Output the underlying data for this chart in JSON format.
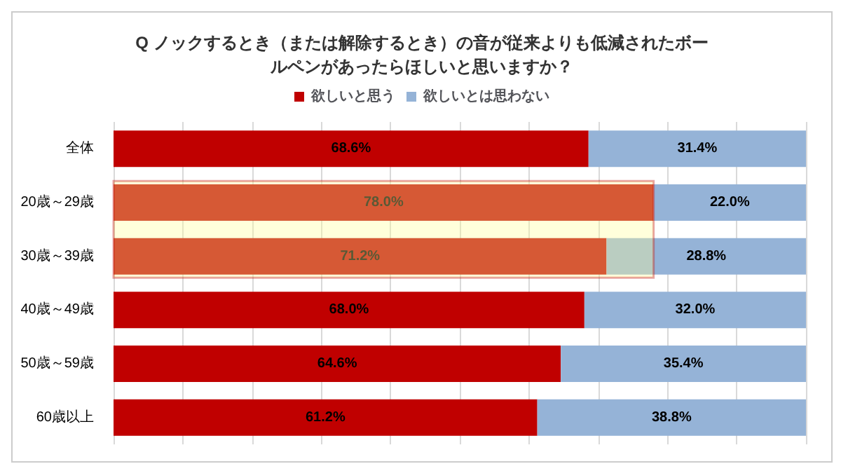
{
  "chart_data": {
    "type": "bar",
    "orientation": "horizontal",
    "stacked": true,
    "title": "Q ノックするとき（または解除するとき）の音が従来よりも低減されたボールペンがあったらほしいと思いますか？",
    "categories": [
      "全体",
      "20歳～29歳",
      "30歳～39歳",
      "40歳～49歳",
      "50歳～59歳",
      "60歳以上"
    ],
    "series": [
      {
        "name": "欲しいと思う",
        "color": "#c00000",
        "values": [
          68.6,
          78.0,
          71.2,
          68.0,
          64.6,
          61.2
        ],
        "value_labels": [
          "68.6%",
          "78.0%",
          "71.2%",
          "68.0%",
          "64.6%",
          "61.2%"
        ]
      },
      {
        "name": "欲しいとは思わない",
        "color": "#95b3d7",
        "values": [
          31.4,
          22.0,
          28.8,
          32.0,
          35.4,
          38.8
        ],
        "value_labels": [
          "31.4%",
          "22.0%",
          "28.8%",
          "32.0%",
          "35.4%",
          "38.8%"
        ]
      }
    ],
    "xlim": [
      0,
      100
    ],
    "xticks": [
      {
        "value": 0,
        "label": null
      },
      {
        "value": 10,
        "label": null
      },
      {
        "value": 20,
        "label": null
      },
      {
        "value": 30,
        "label": null
      },
      {
        "value": 40,
        "label": null
      },
      {
        "value": 50,
        "label": null
      },
      {
        "value": 60,
        "label": null
      },
      {
        "value": 70,
        "label": null
      },
      {
        "value": 80,
        "label": null
      },
      {
        "value": 90,
        "label": null
      },
      {
        "value": 100,
        "label": null
      }
    ],
    "bands": [
      {
        "axis": "y",
        "from": "20歳～29歳",
        "to": "30歳～39歳",
        "color": "#ffff99"
      }
    ],
    "grid": "x",
    "legend": "top",
    "tick_labels": "y"
  }
}
